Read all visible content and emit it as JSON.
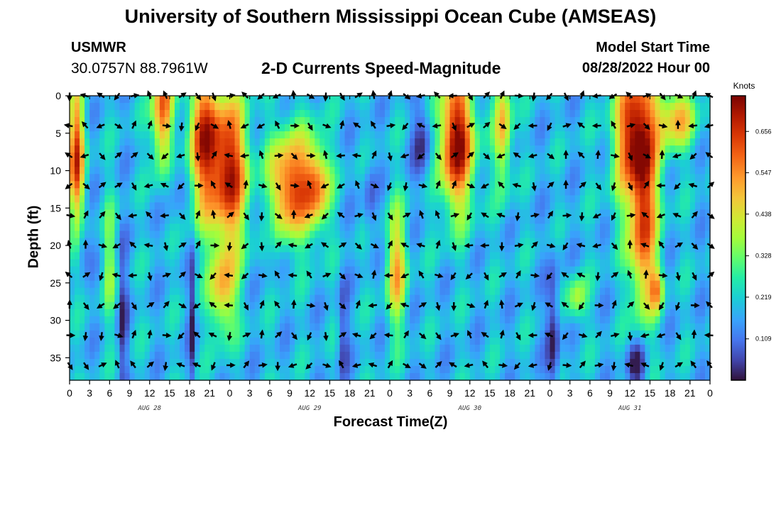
{
  "header": {
    "title": "University of Southern Mississippi Ocean Cube (AMSEAS)",
    "station": "USMWR",
    "coords": "30.0757N  88.7961W",
    "chart_title": "2-D Currents Speed-Magnitude",
    "model_start_label": "Model Start Time",
    "model_start_value": "08/28/2022 Hour 00"
  },
  "footer": {
    "title": "University of Southern Mississippi Ocean Cube (AMSEAS)"
  },
  "chart_data": {
    "type": "heatmap",
    "title": "2-D Currents Speed-Magnitude",
    "xlabel": "Forecast Time(Z)",
    "ylabel": "Depth (ft)",
    "x_ticks": [
      "0",
      "3",
      "6",
      "9",
      "12",
      "15",
      "18",
      "21",
      "0",
      "3",
      "6",
      "9",
      "12",
      "15",
      "18",
      "21",
      "0",
      "3",
      "6",
      "9",
      "12",
      "15",
      "18",
      "21",
      "0",
      "3",
      "6",
      "9",
      "12",
      "15",
      "18",
      "21",
      "0"
    ],
    "x_range_hours": [
      0,
      96
    ],
    "day_labels": [
      {
        "label": "AUG 28",
        "hour": 12
      },
      {
        "label": "AUG 29",
        "hour": 36
      },
      {
        "label": "AUG 30",
        "hour": 60
      },
      {
        "label": "AUG 31",
        "hour": 84
      }
    ],
    "y_ticks": [
      0,
      5,
      10,
      15,
      20,
      25,
      30,
      35
    ],
    "ylim": [
      38,
      0
    ],
    "colorbar": {
      "units": "Knots",
      "ticks": [
        "0.656",
        "0.547",
        "0.438",
        "0.328",
        "0.219",
        "0.109"
      ],
      "tick_values": [
        0.656,
        0.547,
        0.438,
        0.328,
        0.219,
        0.109
      ],
      "range": [
        0,
        0.75
      ]
    },
    "vector_depths_ft": [
      0,
      4,
      8,
      12,
      16,
      20,
      24,
      28,
      32,
      36
    ],
    "vector_interval_hours": 2.4
  }
}
